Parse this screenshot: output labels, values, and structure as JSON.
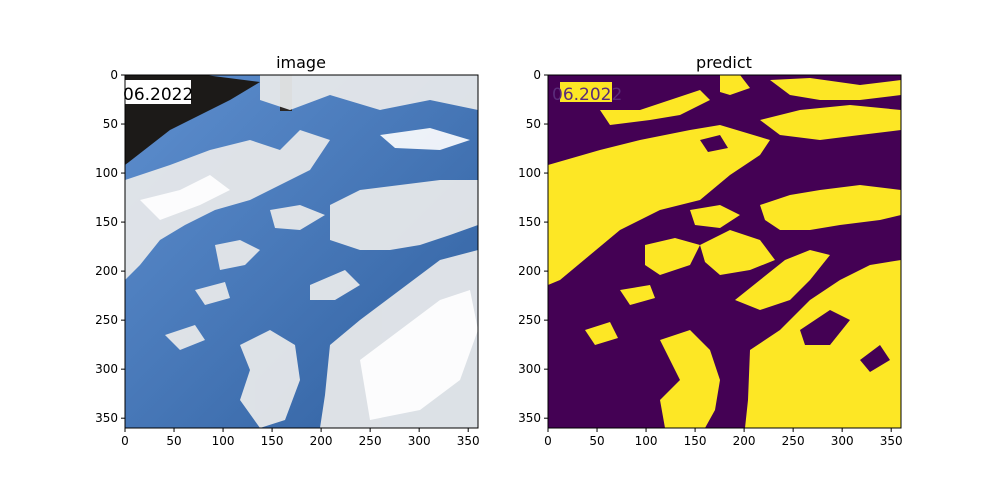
{
  "figure": {
    "panels": [
      {
        "title": "image",
        "overlay_text": "06.2022",
        "x_ticks": [
          "0",
          "50",
          "100",
          "150",
          "200",
          "250",
          "300",
          "350"
        ],
        "y_ticks": [
          "0",
          "50",
          "100",
          "150",
          "200",
          "250",
          "300",
          "350"
        ]
      },
      {
        "title": "predict",
        "overlay_text": "06.2022",
        "x_ticks": [
          "0",
          "50",
          "100",
          "150",
          "200",
          "250",
          "300",
          "350"
        ],
        "y_ticks": [
          "0",
          "50",
          "100",
          "150",
          "200",
          "250",
          "300",
          "350"
        ]
      }
    ],
    "colors": {
      "sky_blue": "#3f73b8",
      "cloud_white": "#e6e8ea",
      "mask_dark": "#440154",
      "mask_yellow": "#fde725"
    }
  }
}
